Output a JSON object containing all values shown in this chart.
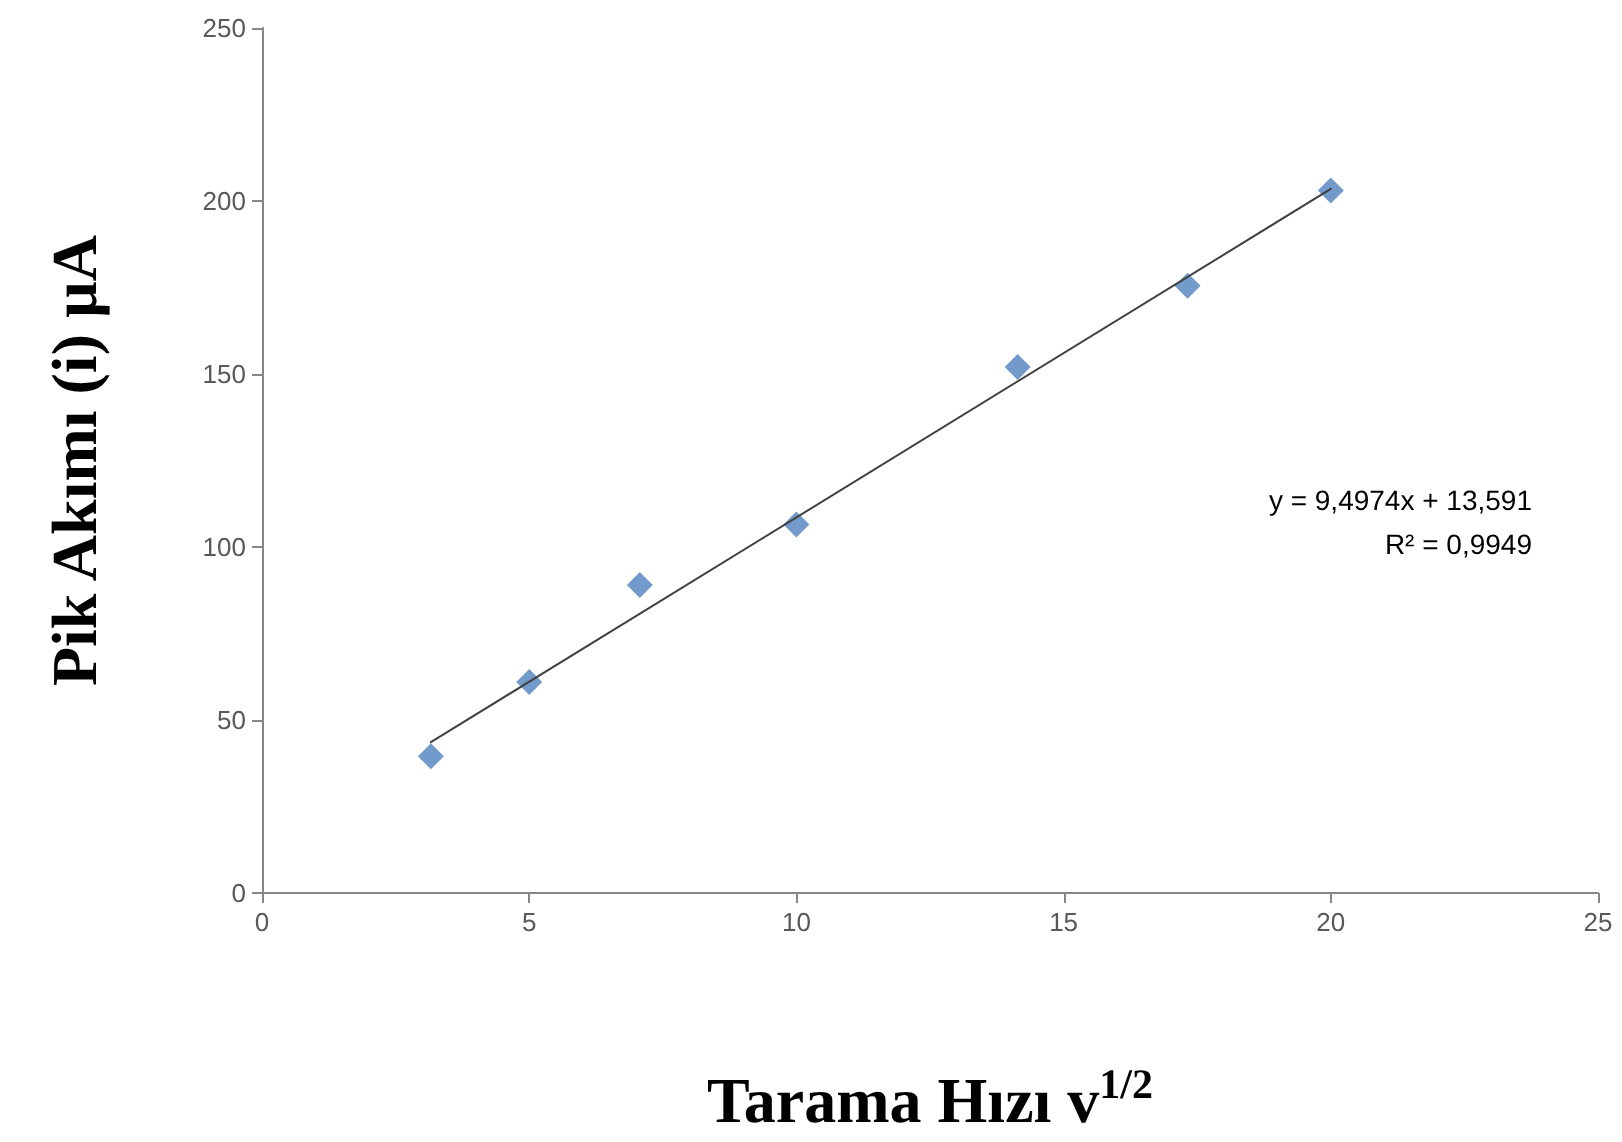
{
  "chart_data": {
    "type": "scatter",
    "xlabel": "Tarama Hızı v$^{1/2}$",
    "ylabel": "Pik Akımı (i) µA",
    "series": [
      {
        "color": "#4f81bd",
        "marker": "diamond",
        "x": [
          3.16,
          5,
          7.07,
          10,
          14.14,
          17.32,
          20
        ],
        "values": [
          39.5,
          61,
          89,
          106.5,
          152,
          175.5,
          203
        ]
      },
      {
        "type": "line",
        "color": "#404040",
        "marker": "none",
        "x": [
          3.16,
          20
        ],
        "values": [
          43.6,
          203.5
        ]
      }
    ],
    "xlim": [
      0,
      25
    ],
    "xticks": [
      0,
      5,
      10,
      15,
      20,
      25
    ],
    "ylim": [
      0,
      250
    ],
    "yticks": [
      0,
      50,
      100,
      150,
      200,
      250
    ],
    "grid": false,
    "annotations": [
      "y = 9,4974x + 13,591",
      "R² = 0,9949"
    ]
  }
}
